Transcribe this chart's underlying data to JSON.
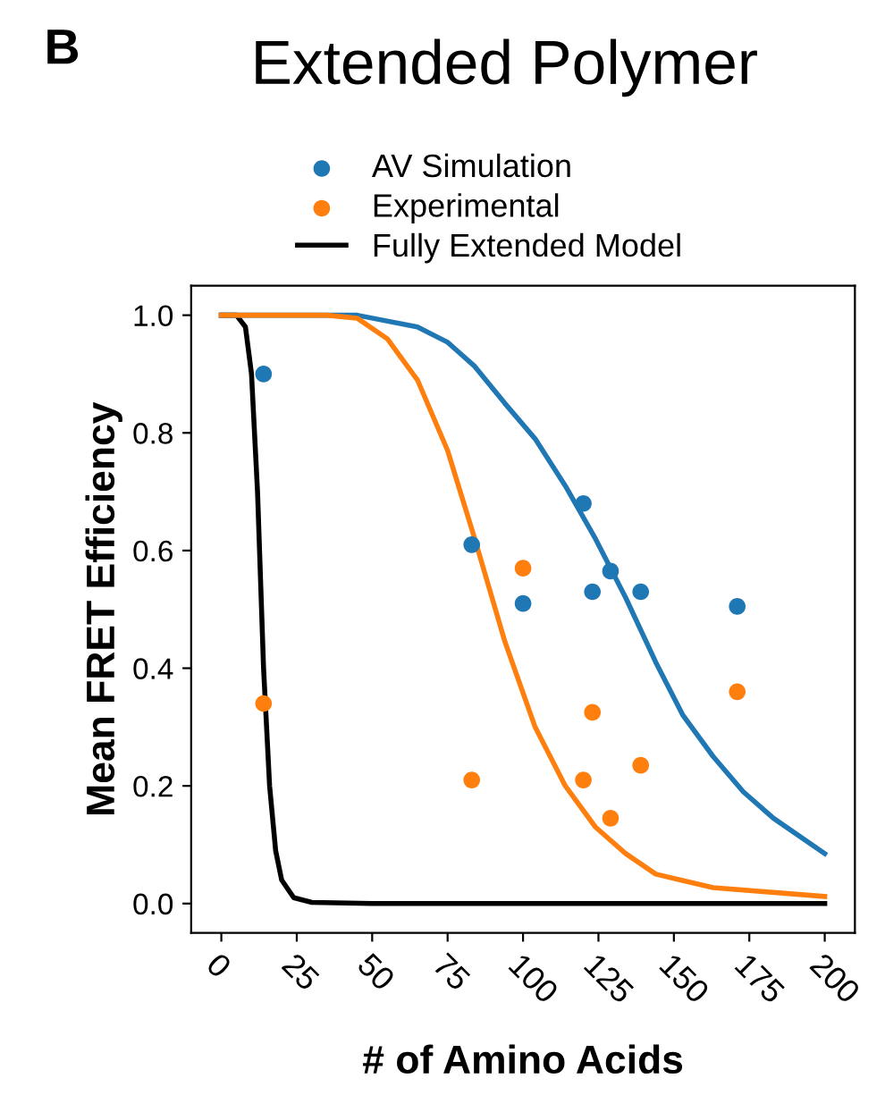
{
  "chart_data": {
    "type": "scatter",
    "title": "Extended Polymer",
    "xlabel": "# of Amino Acids",
    "ylabel": "Mean FRET Efficiency",
    "annotations": [
      "B"
    ],
    "series": [
      {
        "name": "AV Simulation",
        "color": "#1f77b4",
        "x": [
          14,
          83,
          100,
          120,
          123,
          129,
          139,
          171
        ],
        "values": [
          0.9,
          0.61,
          0.51,
          0.68,
          0.53,
          0.565,
          0.53,
          0.505
        ]
      },
      {
        "name": "Experimental",
        "color": "#ff7f0e",
        "x": [
          14,
          83,
          100,
          120,
          123,
          129,
          139,
          171
        ],
        "values": [
          0.34,
          0.21,
          0.57,
          0.21,
          0.325,
          0.145,
          0.235,
          0.36
        ]
      },
      {
        "name": "Fully Extended Model",
        "type": "line",
        "color": "#000000",
        "x": [
          0,
          5,
          8,
          10,
          12,
          14,
          16,
          18,
          20,
          24,
          30,
          50,
          200
        ],
        "values": [
          1.0,
          1.0,
          0.98,
          0.9,
          0.7,
          0.4,
          0.2,
          0.09,
          0.04,
          0.01,
          0.002,
          0,
          0
        ]
      },
      {
        "type": "line",
        "color": "#1f77b4",
        "x": [
          0,
          45,
          65,
          75,
          84,
          94,
          104,
          114,
          124,
          134,
          144,
          153,
          163,
          173,
          183,
          200
        ],
        "values": [
          1.0,
          1.0,
          0.98,
          0.954,
          0.913,
          0.85,
          0.79,
          0.71,
          0.62,
          0.52,
          0.41,
          0.32,
          0.25,
          0.19,
          0.145,
          0.085
        ]
      },
      {
        "type": "line",
        "color": "#ff7f0e",
        "x": [
          0,
          35,
          45,
          55,
          65,
          75,
          84,
          94,
          104,
          114,
          124,
          134,
          144,
          163,
          200
        ],
        "values": [
          1.0,
          1.0,
          0.995,
          0.96,
          0.89,
          0.77,
          0.62,
          0.445,
          0.3,
          0.2,
          0.13,
          0.085,
          0.05,
          0.027,
          0.012
        ]
      }
    ],
    "xlim": [
      -10,
      210
    ],
    "ylim": [
      -0.05,
      1.05
    ],
    "xticks": [
      0,
      25,
      50,
      75,
      100,
      125,
      150,
      175,
      200
    ],
    "yticks": [
      {
        "value": 0,
        "label": "0.0"
      },
      {
        "value": 0.2,
        "label": "0.2"
      },
      {
        "value": 0.4,
        "label": "0.4"
      },
      {
        "value": 0.6,
        "label": "0.6"
      },
      {
        "value": 0.8,
        "label": "0.8"
      },
      {
        "value": 1,
        "label": "1.0"
      }
    ],
    "legend": "top",
    "grid": false
  }
}
